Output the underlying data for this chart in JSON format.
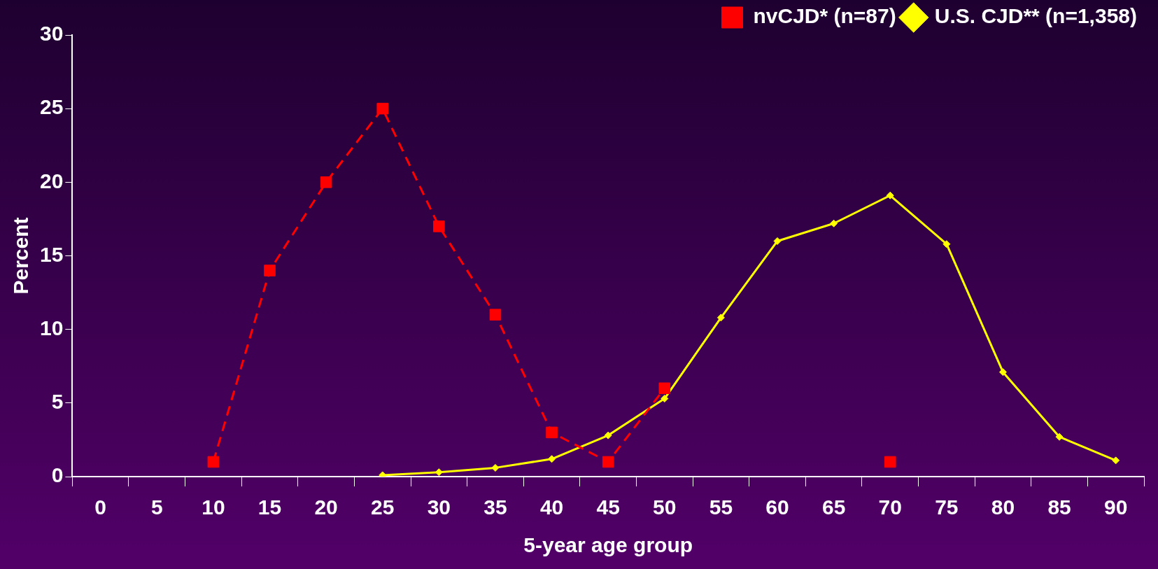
{
  "chart_data": {
    "type": "line",
    "xlabel": "5-year age group",
    "ylabel": "Percent",
    "categories": [
      "0",
      "5",
      "10",
      "15",
      "20",
      "25",
      "30",
      "35",
      "40",
      "45",
      "50",
      "55",
      "60",
      "65",
      "70",
      "75",
      "80",
      "85",
      "90"
    ],
    "series": [
      {
        "name": "nvCJD* (n=87)",
        "color": "#ff0000",
        "line_style": "dashed",
        "marker": "square",
        "values": [
          null,
          null,
          1,
          14,
          20,
          25,
          17,
          11,
          3,
          1,
          6,
          null,
          null,
          null,
          1,
          null,
          null,
          null,
          null
        ]
      },
      {
        "name": "U.S. CJD** (n=1,358)",
        "color": "#ffff00",
        "line_style": "solid",
        "marker": "diamond",
        "values": [
          null,
          null,
          null,
          null,
          null,
          0.1,
          0.3,
          0.6,
          1.2,
          2.8,
          5.3,
          10.8,
          16,
          17.2,
          19.1,
          15.8,
          7.1,
          2.7,
          1.1
        ]
      }
    ],
    "ylim": [
      0,
      30
    ],
    "yticks": [
      0,
      5,
      10,
      15,
      20,
      25,
      30
    ],
    "grid": false,
    "legend": "top right"
  }
}
